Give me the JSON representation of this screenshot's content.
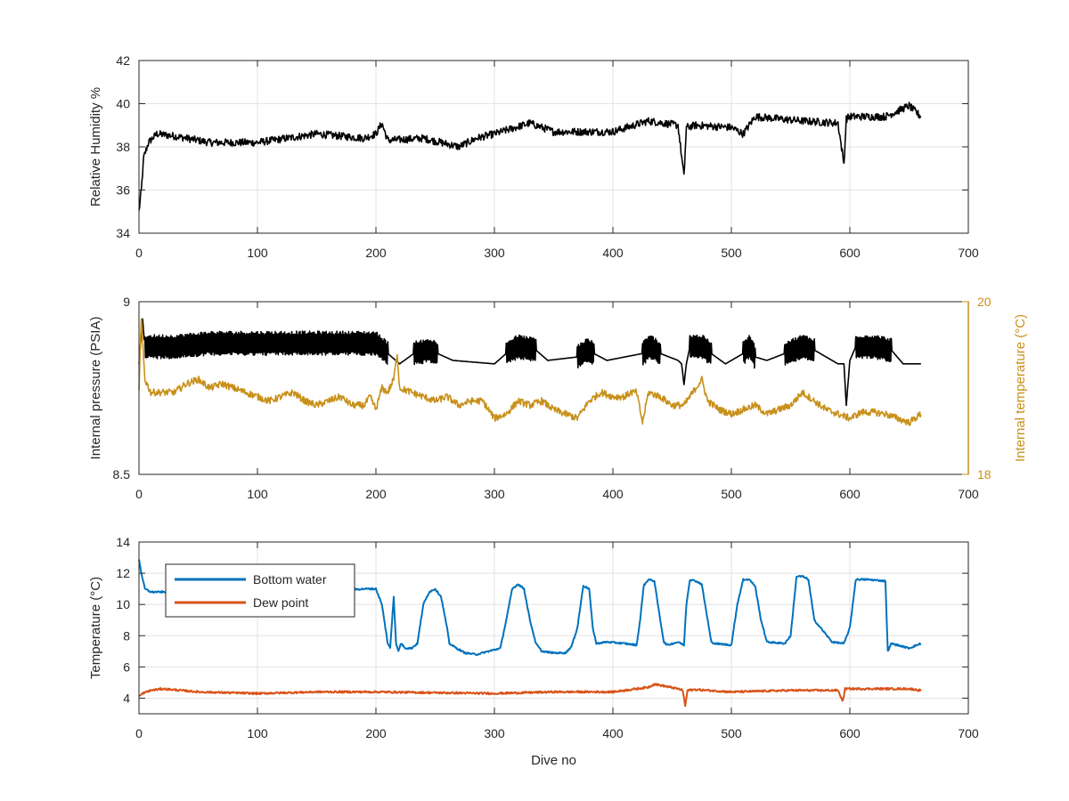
{
  "figure": {
    "background": "#ffffff",
    "axis_color": "#262626",
    "grid_color": "#e3e3e3"
  },
  "chart_data": [
    {
      "type": "line",
      "panel": "top",
      "ylabel": "Relative Humidity %",
      "xlim": [
        0,
        700
      ],
      "ylim": [
        34,
        42
      ],
      "xticks": [
        0,
        100,
        200,
        300,
        400,
        500,
        600,
        700
      ],
      "yticks": [
        34,
        36,
        38,
        40,
        42
      ],
      "grid": true,
      "series": [
        {
          "color": "#000000",
          "noise": 0.35,
          "x": [
            0,
            2,
            4,
            8,
            15,
            30,
            60,
            100,
            150,
            190,
            200,
            205,
            210,
            240,
            270,
            285,
            300,
            330,
            350,
            400,
            430,
            455,
            460,
            462,
            470,
            500,
            510,
            520,
            560,
            590,
            595,
            597,
            600,
            630,
            650,
            660
          ],
          "y": [
            35.0,
            36.0,
            37.5,
            38.2,
            38.6,
            38.5,
            38.2,
            38.2,
            38.6,
            38.4,
            38.6,
            39.1,
            38.3,
            38.4,
            38.0,
            38.4,
            38.6,
            39.1,
            38.7,
            38.7,
            39.2,
            39.0,
            36.6,
            38.9,
            39.0,
            38.9,
            38.6,
            39.4,
            39.2,
            39.1,
            37.2,
            39.3,
            39.4,
            39.4,
            39.9,
            39.4
          ]
        }
      ]
    },
    {
      "type": "line",
      "panel": "middle",
      "ylabel": "Internal pressure (PSIA)",
      "ylabel_right": "Internal temperature (°C)",
      "xlim": [
        0,
        700
      ],
      "ylim": [
        8.5,
        9.0
      ],
      "ylim_right": [
        18,
        20
      ],
      "xticks": [
        0,
        100,
        200,
        300,
        400,
        500,
        600,
        700
      ],
      "yticks": [
        8.5,
        9
      ],
      "yticks_right": [
        18,
        20
      ],
      "grid": false,
      "series": [
        {
          "axis": "left",
          "color": "#000000",
          "oscillating": true,
          "osc_ranges": [
            [
              5,
              210
            ],
            [
              232,
              252
            ],
            [
              310,
              335
            ],
            [
              370,
              384
            ],
            [
              425,
              440
            ],
            [
              465,
              483
            ],
            [
              510,
              520
            ],
            [
              545,
              570
            ],
            [
              605,
              635
            ]
          ],
          "osc_amplitude": 0.035,
          "x": [
            0,
            3,
            5,
            30,
            60,
            100,
            150,
            200,
            210,
            220,
            232,
            245,
            252,
            265,
            300,
            310,
            320,
            335,
            345,
            370,
            378,
            384,
            395,
            425,
            432,
            440,
            455,
            458,
            460,
            462,
            465,
            475,
            483,
            495,
            510,
            515,
            520,
            530,
            545,
            560,
            570,
            585,
            590,
            595,
            597,
            600,
            605,
            620,
            635,
            645,
            660
          ],
          "y": [
            8.82,
            8.95,
            8.87,
            8.87,
            8.88,
            8.88,
            8.88,
            8.88,
            8.85,
            8.82,
            8.85,
            8.86,
            8.85,
            8.83,
            8.82,
            8.85,
            8.87,
            8.86,
            8.83,
            8.84,
            8.86,
            8.85,
            8.83,
            8.85,
            8.87,
            8.85,
            8.83,
            8.82,
            8.76,
            8.82,
            8.87,
            8.87,
            8.85,
            8.82,
            8.85,
            8.87,
            8.84,
            8.83,
            8.85,
            8.87,
            8.86,
            8.83,
            8.82,
            8.82,
            8.7,
            8.83,
            8.87,
            8.87,
            8.86,
            8.82,
            8.82
          ]
        },
        {
          "axis": "right",
          "color": "#c8901a",
          "noise": 0.08,
          "x": [
            0,
            2,
            5,
            10,
            20,
            30,
            40,
            50,
            60,
            70,
            80,
            90,
            100,
            110,
            120,
            130,
            140,
            150,
            160,
            170,
            180,
            190,
            195,
            200,
            205,
            210,
            215,
            218,
            220,
            230,
            240,
            250,
            260,
            270,
            280,
            290,
            300,
            310,
            320,
            330,
            340,
            350,
            360,
            370,
            380,
            390,
            400,
            410,
            415,
            420,
            425,
            430,
            440,
            450,
            460,
            470,
            475,
            480,
            490,
            500,
            510,
            520,
            530,
            540,
            550,
            560,
            570,
            580,
            590,
            600,
            610,
            620,
            630,
            640,
            650,
            660
          ],
          "y": [
            19.0,
            19.8,
            19.1,
            18.95,
            18.95,
            18.95,
            19.05,
            19.1,
            19.0,
            19.05,
            19.0,
            18.95,
            18.9,
            18.85,
            18.9,
            18.95,
            18.85,
            18.8,
            18.85,
            18.9,
            18.8,
            18.8,
            18.9,
            18.75,
            19.0,
            18.95,
            19.1,
            19.4,
            19.0,
            18.95,
            18.9,
            18.85,
            18.9,
            18.8,
            18.85,
            18.85,
            18.65,
            18.7,
            18.85,
            18.8,
            18.85,
            18.75,
            18.7,
            18.65,
            18.85,
            18.95,
            18.9,
            18.9,
            18.95,
            18.95,
            18.6,
            18.95,
            18.9,
            18.8,
            18.8,
            19.0,
            19.1,
            18.85,
            18.75,
            18.7,
            18.75,
            18.8,
            18.7,
            18.75,
            18.8,
            18.95,
            18.85,
            18.75,
            18.7,
            18.65,
            18.72,
            18.72,
            18.7,
            18.65,
            18.6,
            18.7
          ]
        }
      ]
    },
    {
      "type": "line",
      "panel": "bottom",
      "xlabel": "Dive no",
      "ylabel": "Temperature (°C)",
      "xlim": [
        0,
        700
      ],
      "ylim": [
        3,
        14
      ],
      "xticks": [
        0,
        100,
        200,
        300,
        400,
        500,
        600,
        700
      ],
      "yticks": [
        4,
        6,
        8,
        10,
        12,
        14
      ],
      "grid": true,
      "legend": "top-left",
      "series": [
        {
          "name": "Bottom water",
          "color": "#0072bd",
          "noise": 0.1,
          "x": [
            0,
            2,
            5,
            10,
            50,
            60,
            100,
            150,
            190,
            200,
            205,
            210,
            212,
            215,
            217,
            219,
            221,
            225,
            230,
            235,
            240,
            245,
            250,
            255,
            260,
            262,
            268,
            275,
            285,
            295,
            305,
            310,
            315,
            320,
            325,
            330,
            335,
            340,
            350,
            360,
            365,
            370,
            375,
            380,
            383,
            386,
            395,
            410,
            420,
            423,
            426,
            430,
            435,
            440,
            443,
            446,
            455,
            460,
            462,
            465,
            470,
            475,
            480,
            483,
            486,
            500,
            505,
            510,
            515,
            520,
            525,
            530,
            545,
            550,
            555,
            560,
            565,
            570,
            585,
            595,
            600,
            605,
            615,
            630,
            632,
            635,
            650,
            660
          ],
          "y": [
            12.9,
            12.0,
            11.0,
            10.8,
            10.8,
            10.8,
            10.8,
            10.8,
            11.0,
            11.0,
            10.0,
            7.5,
            7.2,
            10.5,
            7.5,
            7.0,
            7.5,
            7.2,
            7.2,
            7.5,
            10.0,
            10.8,
            11.0,
            10.5,
            8.5,
            7.5,
            7.2,
            6.9,
            6.8,
            7.0,
            7.2,
            9.0,
            11.0,
            11.3,
            11.0,
            9.0,
            7.5,
            7.0,
            6.9,
            6.9,
            7.3,
            8.5,
            11.2,
            11.0,
            8.5,
            7.5,
            7.6,
            7.5,
            7.4,
            9.0,
            11.2,
            11.6,
            11.5,
            9.0,
            7.6,
            7.4,
            7.6,
            7.4,
            10.0,
            11.6,
            11.5,
            11.3,
            9.0,
            7.6,
            7.5,
            7.4,
            10.0,
            11.6,
            11.6,
            11.2,
            9.0,
            7.6,
            7.5,
            8.0,
            11.8,
            11.8,
            11.6,
            9.0,
            7.6,
            7.5,
            8.5,
            11.6,
            11.6,
            11.5,
            7.0,
            7.5,
            7.2,
            7.5
          ]
        },
        {
          "name": "Dew point",
          "color": "#d95319",
          "noise": 0.12,
          "x": [
            0,
            3,
            10,
            20,
            50,
            100,
            150,
            200,
            250,
            300,
            350,
            400,
            430,
            435,
            455,
            459,
            461,
            463,
            470,
            500,
            550,
            590,
            594,
            596,
            600,
            650,
            660
          ],
          "y": [
            4.1,
            4.3,
            4.5,
            4.6,
            4.4,
            4.3,
            4.4,
            4.4,
            4.35,
            4.3,
            4.4,
            4.4,
            4.7,
            4.9,
            4.6,
            4.5,
            3.5,
            4.5,
            4.55,
            4.4,
            4.5,
            4.5,
            3.8,
            4.6,
            4.6,
            4.6,
            4.5
          ]
        }
      ]
    }
  ]
}
